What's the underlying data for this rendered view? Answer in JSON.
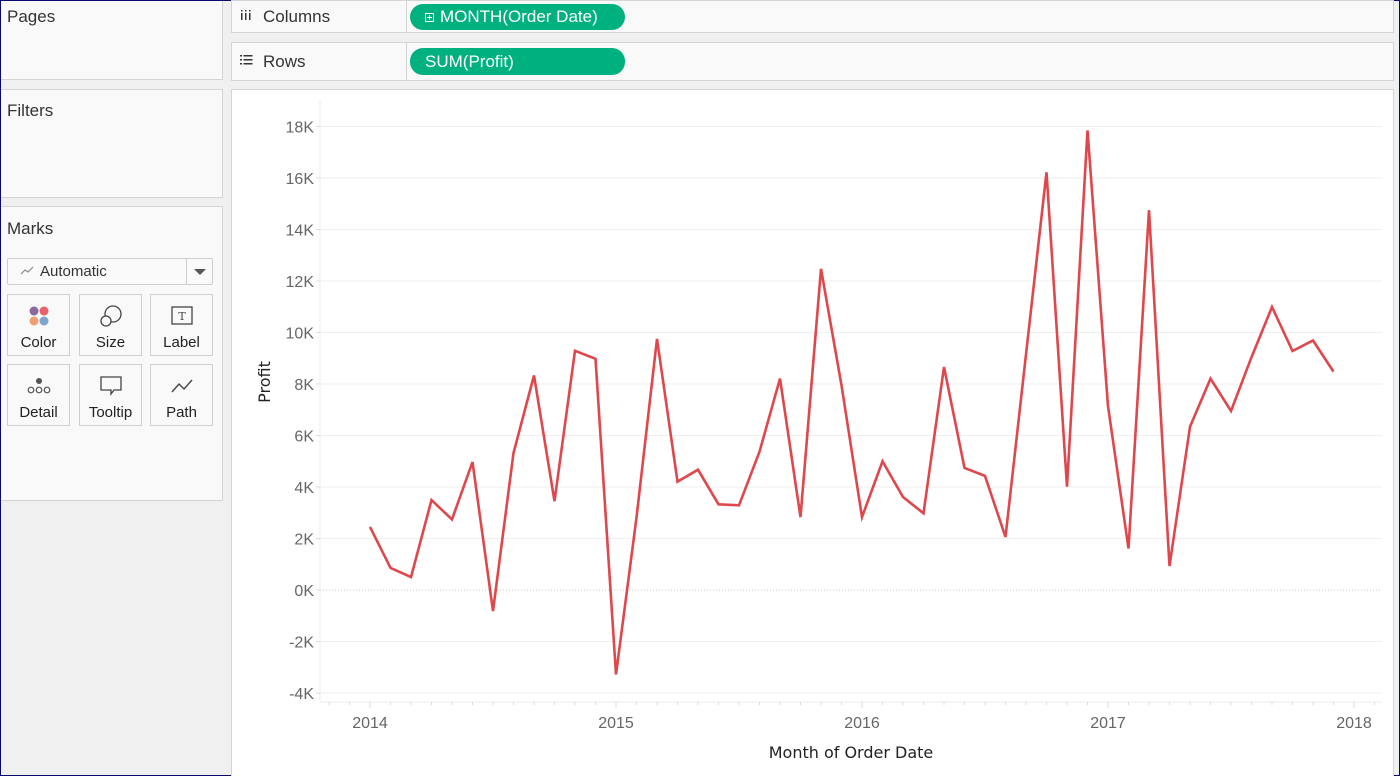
{
  "panels": {
    "pages": {
      "title": "Pages"
    },
    "filters": {
      "title": "Filters"
    },
    "marks": {
      "title": "Marks",
      "mark_type": {
        "icon": "line-mark-icon",
        "label": "Automatic"
      },
      "buttons": [
        {
          "label": "Color",
          "icon": "color-icon"
        },
        {
          "label": "Size",
          "icon": "size-icon"
        },
        {
          "label": "Label",
          "icon": "label-icon"
        },
        {
          "label": "Detail",
          "icon": "detail-icon"
        },
        {
          "label": "Tooltip",
          "icon": "tooltip-icon"
        },
        {
          "label": "Path",
          "icon": "path-icon"
        }
      ]
    }
  },
  "shelves": {
    "columns": {
      "icon": "columns-icon",
      "label": "Columns",
      "pill": "MONTH(Order Date)",
      "pill_has_expand": true
    },
    "rows": {
      "icon": "rows-icon",
      "label": "Rows",
      "pill": "SUM(Profit)"
    }
  },
  "colors": {
    "pill": "#00b180",
    "line": "#e0474c",
    "gridline": "#efefef",
    "zero_line": "#c8c8c8"
  },
  "chart_data": {
    "type": "line",
    "title": "",
    "xlabel": "Month of Order Date",
    "ylabel": "Profit",
    "ylim": [
      -4000,
      18000
    ],
    "yticks": [
      "18K",
      "16K",
      "14K",
      "12K",
      "10K",
      "8K",
      "6K",
      "4K",
      "2K",
      "0K",
      "-2K",
      "-4K"
    ],
    "ytick_values": [
      18000,
      16000,
      14000,
      12000,
      10000,
      8000,
      6000,
      4000,
      2000,
      0,
      -2000,
      -4000
    ],
    "xticks": [
      "2014",
      "2015",
      "2016",
      "2017",
      "2018"
    ],
    "grid": true,
    "legend": null,
    "x": [
      "Jan 2014",
      "Feb 2014",
      "Mar 2014",
      "Apr 2014",
      "May 2014",
      "Jun 2014",
      "Jul 2014",
      "Aug 2014",
      "Sep 2014",
      "Oct 2014",
      "Nov 2014",
      "Dec 2014",
      "Jan 2015",
      "Feb 2015",
      "Mar 2015",
      "Apr 2015",
      "May 2015",
      "Jun 2015",
      "Jul 2015",
      "Aug 2015",
      "Sep 2015",
      "Oct 2015",
      "Nov 2015",
      "Dec 2015",
      "Jan 2016",
      "Feb 2016",
      "Mar 2016",
      "Apr 2016",
      "May 2016",
      "Jun 2016",
      "Jul 2016",
      "Aug 2016",
      "Sep 2016",
      "Oct 2016",
      "Nov 2016",
      "Dec 2016",
      "Jan 2017",
      "Feb 2017",
      "Mar 2017",
      "Apr 2017",
      "May 2017",
      "Jun 2017",
      "Jul 2017",
      "Aug 2017",
      "Sep 2017",
      "Oct 2017",
      "Nov 2017",
      "Dec 2017"
    ],
    "series": [
      {
        "name": "SUM(Profit)",
        "values": [
          2450,
          860,
          500,
          3490,
          2740,
          4970,
          -820,
          5320,
          8330,
          3450,
          9290,
          8980,
          -3280,
          2810,
          9750,
          4210,
          4670,
          3330,
          3290,
          5370,
          8210,
          2830,
          12470,
          7950,
          2830,
          5000,
          3610,
          2980,
          8660,
          4740,
          4430,
          2060,
          9150,
          16220,
          4010,
          17850,
          7140,
          1610,
          14750,
          930,
          6340,
          8210,
          6950,
          9040,
          10990,
          9280,
          9690,
          8480
        ]
      }
    ]
  }
}
